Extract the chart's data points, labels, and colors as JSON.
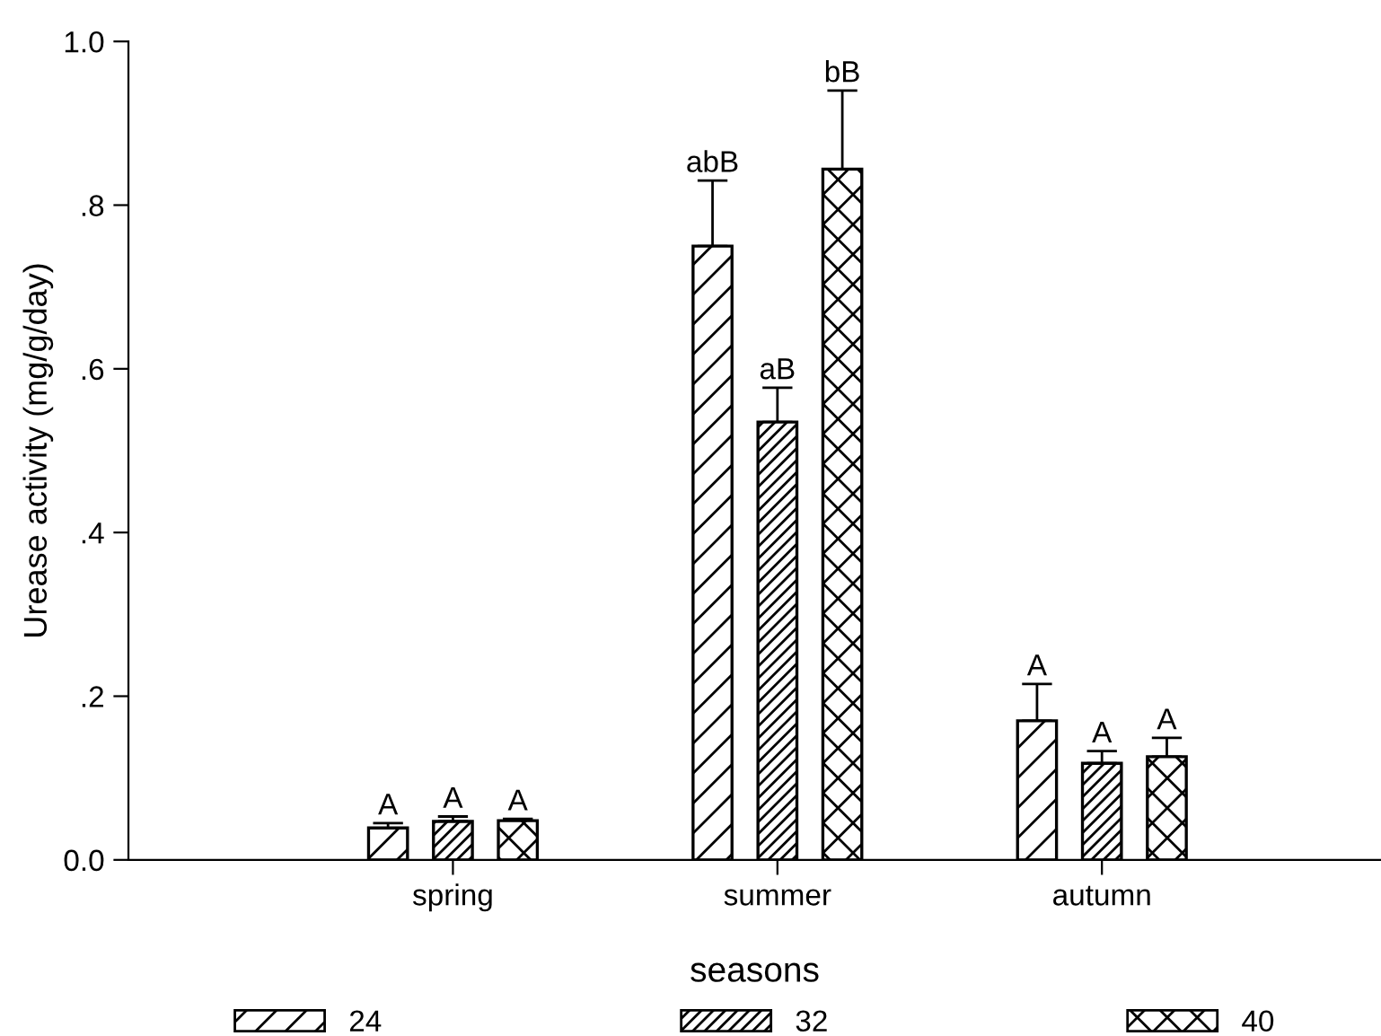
{
  "chart_data": {
    "type": "bar",
    "xlabel": "seasons",
    "ylabel": "Urease activity (mg/g/day)",
    "categories": [
      "spring",
      "summer",
      "autumn"
    ],
    "series": [
      {
        "name": "24",
        "color": "#000000",
        "values": [
          0.039,
          0.75,
          0.17
        ],
        "errors": [
          [
            0.039,
            0.045
          ],
          [
            0.75,
            0.83
          ],
          [
            0.17,
            0.215
          ]
        ],
        "value_labels": [
          "A",
          "abB",
          "A"
        ]
      },
      {
        "name": "32",
        "color": "#000000",
        "values": [
          0.047,
          0.535,
          0.118
        ],
        "errors": [
          [
            0.047,
            0.053
          ],
          [
            0.535,
            0.577
          ],
          [
            0.118,
            0.133
          ]
        ],
        "value_labels": [
          "A",
          "aB",
          "A"
        ]
      },
      {
        "name": "40",
        "color": "#000000",
        "values": [
          0.048,
          0.844,
          0.126
        ],
        "errors": [
          [
            0.048,
            0.05
          ],
          [
            0.844,
            0.94
          ],
          [
            0.126,
            0.149
          ]
        ],
        "value_labels": [
          "A",
          "bB",
          "A"
        ]
      }
    ],
    "ylim": [
      0,
      1.0
    ],
    "yticks": [
      {
        "value": 0,
        "label": "0.0"
      },
      {
        "value": 0.2,
        "label": ".2"
      },
      {
        "value": 0.4,
        "label": ".4"
      },
      {
        "value": 0.6,
        "label": ".6"
      },
      {
        "value": 0.8,
        "label": ".8"
      },
      {
        "value": 1.0,
        "label": "1.0"
      }
    ],
    "grid": false,
    "legend": "bottom"
  }
}
